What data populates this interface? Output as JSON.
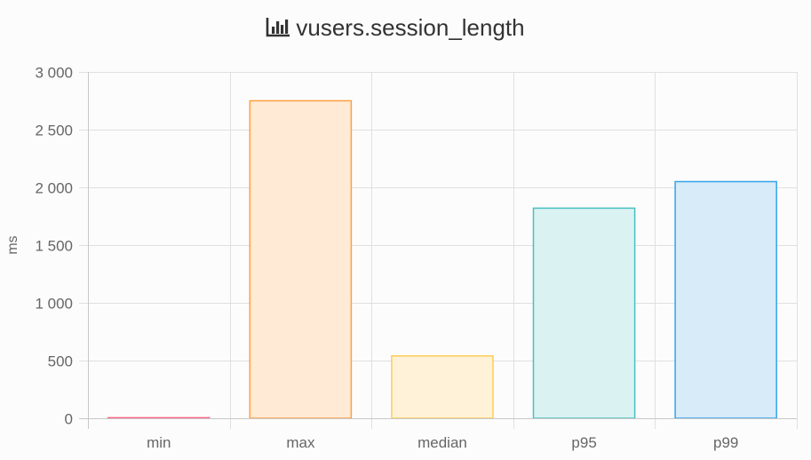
{
  "chart_data": {
    "type": "bar",
    "title": "vusers.session_length",
    "title_icon": "bar-chart-icon",
    "ylabel": "ms",
    "xlabel": "",
    "ylim": [
      0,
      3000
    ],
    "yticks": [
      0,
      500,
      1000,
      1500,
      2000,
      2500,
      3000
    ],
    "ytick_labels": [
      "0",
      "500",
      "1 000",
      "1 500",
      "2 000",
      "2 500",
      "3 000"
    ],
    "categories": [
      "min",
      "max",
      "median",
      "p95",
      "p99"
    ],
    "values": [
      5,
      2750,
      540,
      1820,
      2050
    ],
    "colors": [
      {
        "fill": "#ffe0e6",
        "stroke": "#ff6384"
      },
      {
        "fill": "#ffead6",
        "stroke": "#ff9f40"
      },
      {
        "fill": "#fff2d8",
        "stroke": "#ffcd56"
      },
      {
        "fill": "#dbf2f2",
        "stroke": "#4bc0c0"
      },
      {
        "fill": "#d7ebf8",
        "stroke": "#36a2eb"
      }
    ],
    "grid": true,
    "legend": "none"
  }
}
